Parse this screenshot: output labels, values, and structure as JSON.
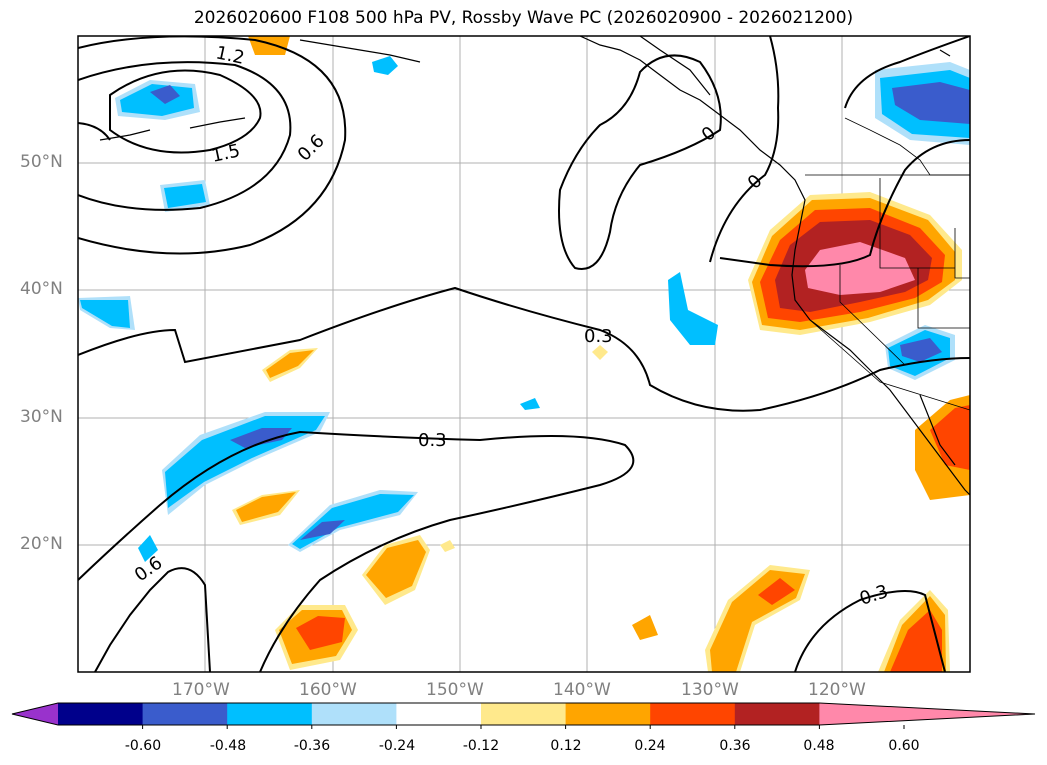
{
  "title": "2026020600 F108 500 hPa PV, Rossby Wave PC (2026020900 - 2026021200)",
  "axes": {
    "lat_labels": [
      "50°N",
      "40°N",
      "30°N",
      "20°N"
    ],
    "lon_labels": [
      "170°W",
      "160°W",
      "150°W",
      "140°W",
      "130°W",
      "120°W"
    ],
    "extent": {
      "lon_min": -180,
      "lon_max": -110,
      "lat_min": 10,
      "lat_max": 60
    }
  },
  "contour_labels": [
    "1.2",
    "1.5",
    "0.6",
    "0",
    "0",
    "0.3",
    "0.3",
    "0.6",
    "0.3"
  ],
  "colorbar": {
    "ticks": [
      "-0.60",
      "-0.48",
      "-0.36",
      "-0.24",
      "-0.12",
      "0.12",
      "0.24",
      "0.36",
      "0.48",
      "0.60"
    ],
    "colors": [
      "#9932cc",
      "#00008b",
      "#3a5ccc",
      "#00bfff",
      "#afe0fa",
      "#ffffff",
      "#ffe98c",
      "#ffa500",
      "#ff4500",
      "#b22222",
      "#ff88aa"
    ]
  }
}
